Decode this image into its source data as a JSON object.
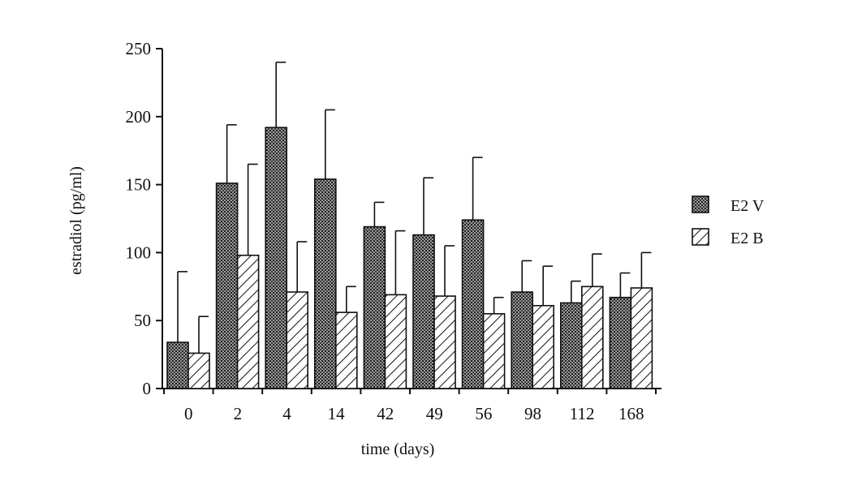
{
  "chart_data": {
    "type": "bar",
    "xlabel": "time (days)",
    "ylabel": "estradiol (pg/ml)",
    "categories": [
      "0",
      "2",
      "4",
      "14",
      "42",
      "49",
      "56",
      "98",
      "112",
      "168"
    ],
    "series": [
      {
        "name": "E2 V",
        "pattern": "dense-dots",
        "values": [
          34,
          151,
          192,
          154,
          119,
          113,
          124,
          71,
          63,
          67
        ],
        "error_upper": [
          86,
          194,
          240,
          205,
          137,
          155,
          170,
          94,
          79,
          85
        ]
      },
      {
        "name": "E2 B",
        "pattern": "diagonal-hatch",
        "values": [
          26,
          98,
          71,
          56,
          69,
          68,
          55,
          61,
          75,
          74
        ],
        "error_upper": [
          53,
          165,
          108,
          75,
          116,
          105,
          67,
          90,
          99,
          100
        ]
      }
    ],
    "ylim": [
      0,
      250
    ],
    "yticks": [
      "0",
      "50",
      "100",
      "150",
      "200",
      "250"
    ],
    "grid": false,
    "legend_position": "right"
  }
}
